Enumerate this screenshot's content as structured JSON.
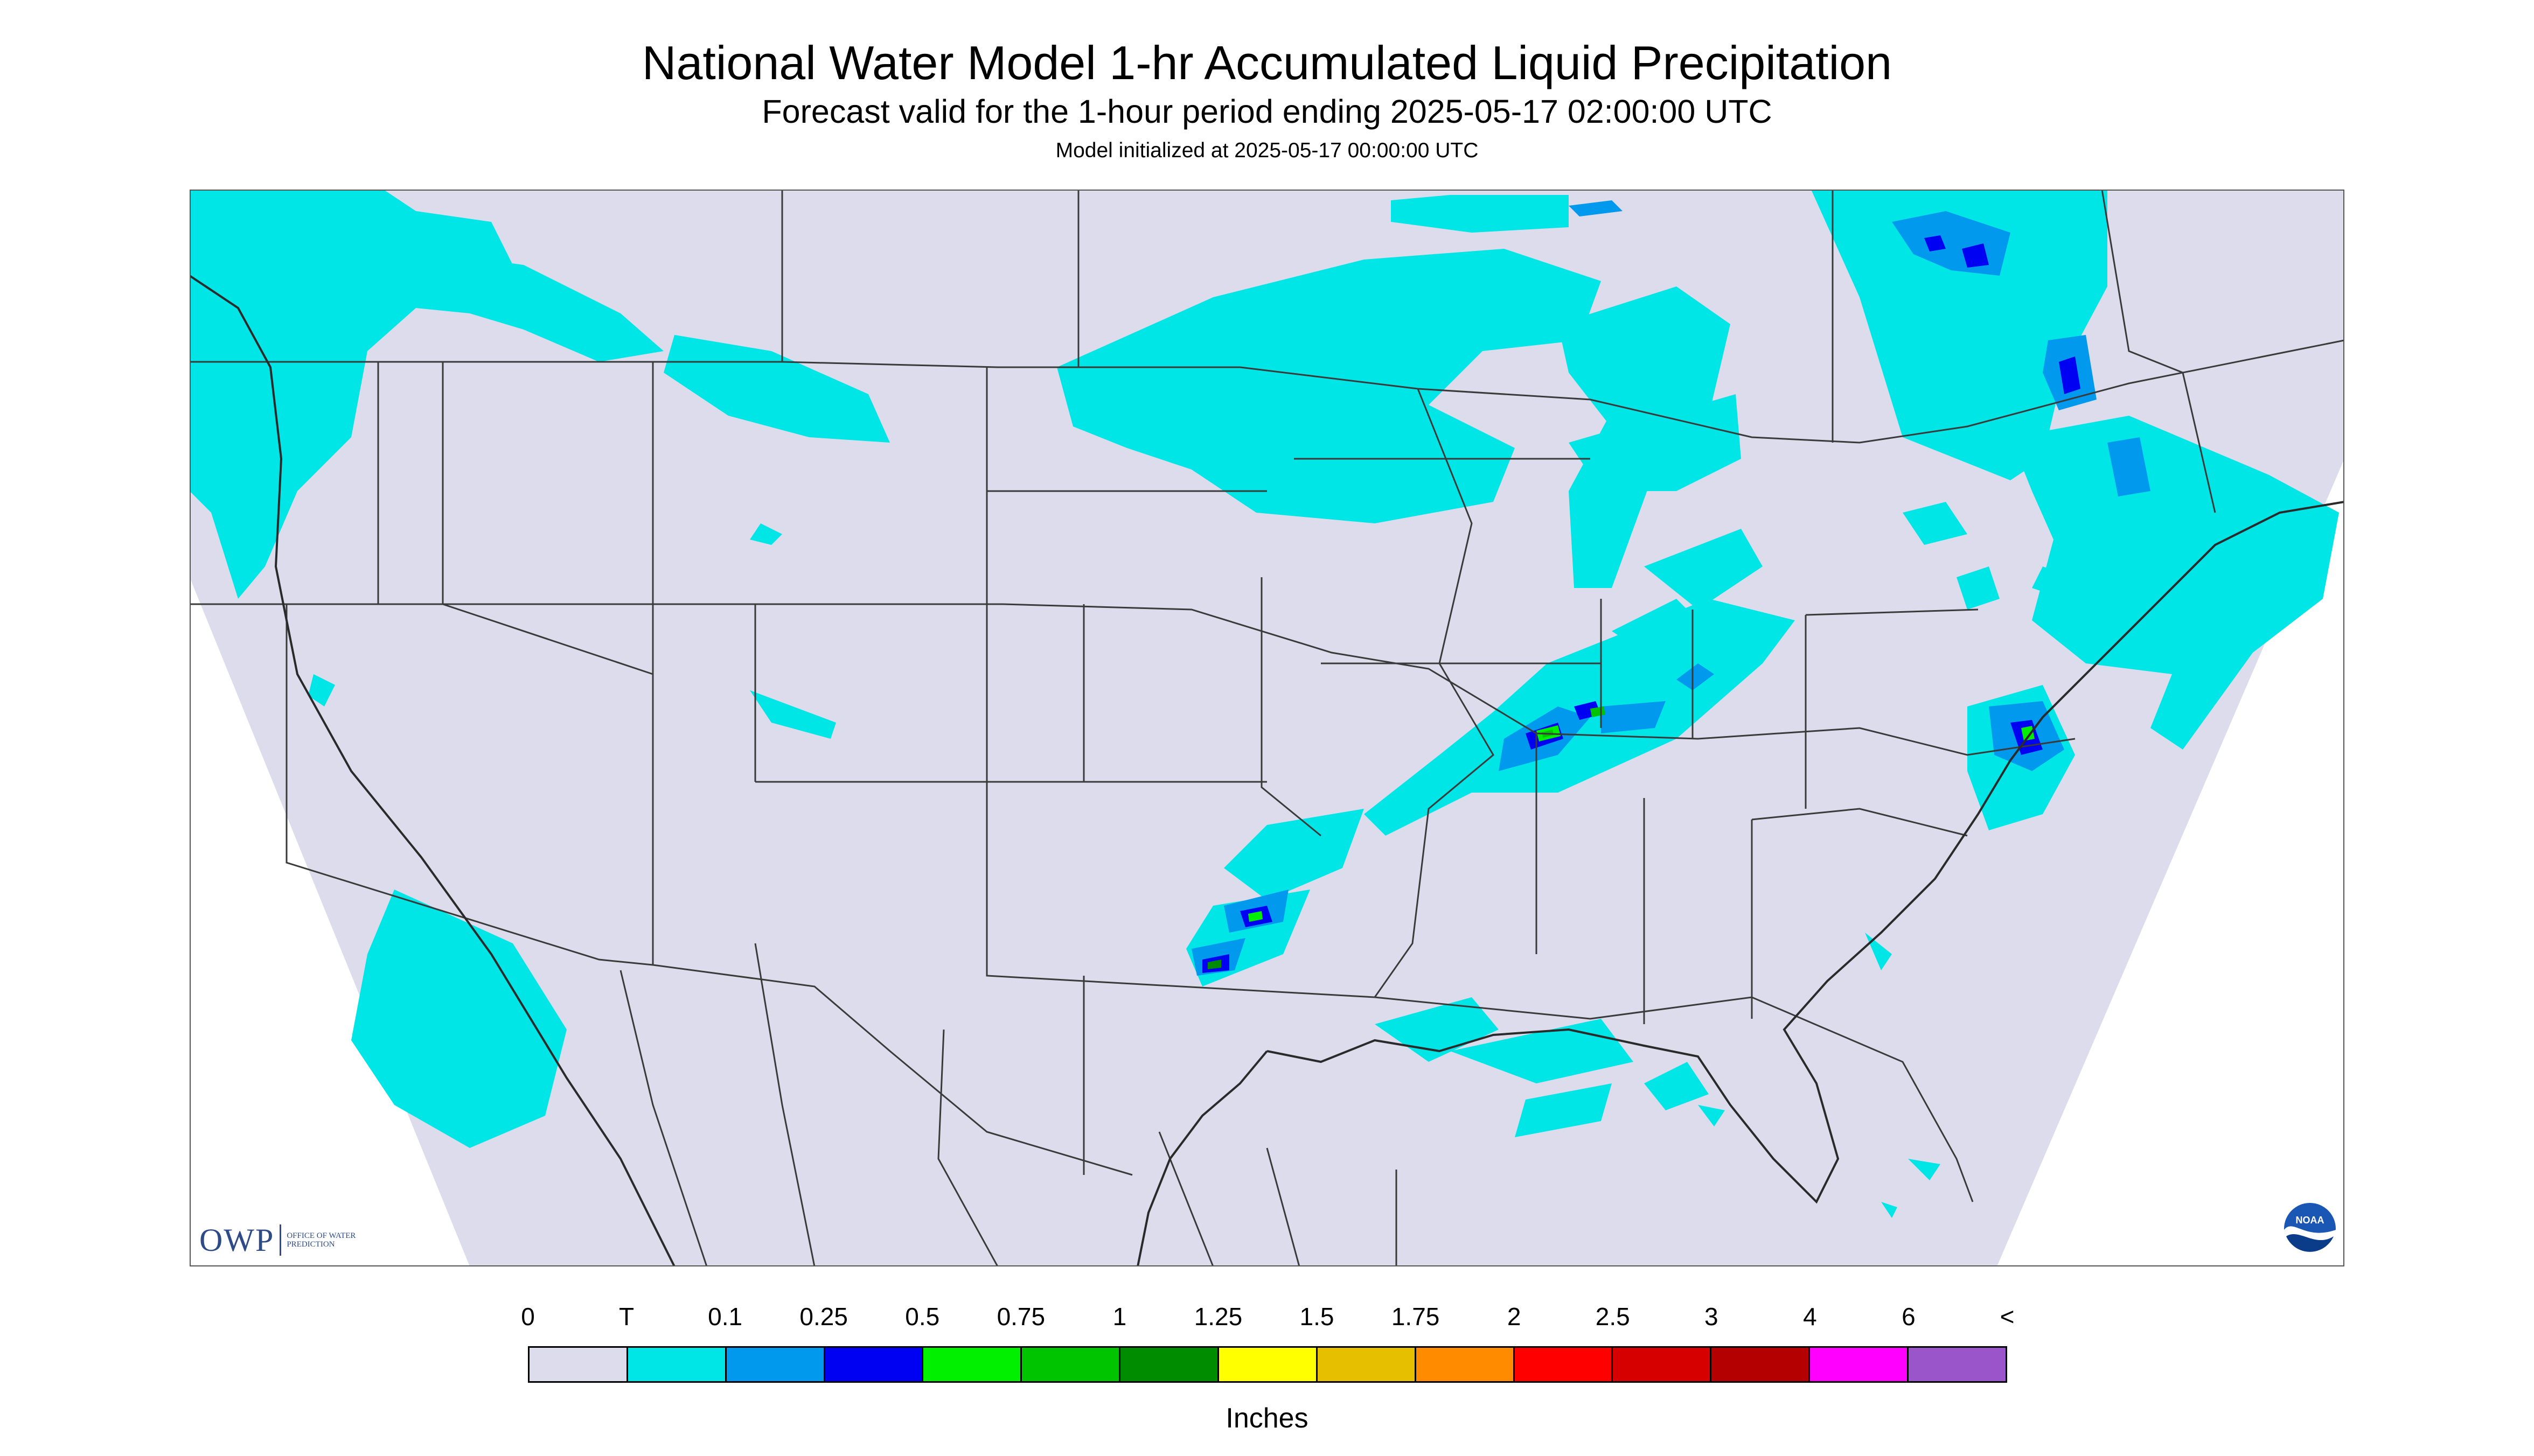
{
  "title": "National Water Model 1-hr Accumulated Liquid Precipitation",
  "subtitle": "Forecast valid for the 1-hour period ending 2025-05-17 02:00:00 UTC",
  "init_line": "Model initialized at 2025-05-17 00:00:00 UTC",
  "logos": {
    "owp_mark": "OWP",
    "owp_text": "Office of Water Prediction",
    "noaa_text": "NOAA"
  },
  "colors": {
    "map_background": "#dcdcec",
    "outside_domain": "#ffffff",
    "boundary_lines": "#3a3a3a"
  },
  "legend": {
    "units": "Inches",
    "labels": [
      "0",
      "T",
      "0.1",
      "0.25",
      "0.5",
      "0.75",
      "1",
      "1.25",
      "1.5",
      "1.75",
      "2",
      "2.5",
      "3",
      "4",
      "6",
      "<"
    ],
    "bins": [
      {
        "color": "#dcdcec"
      },
      {
        "color": "#00e5e6"
      },
      {
        "color": "#0099ee"
      },
      {
        "color": "#0000f2"
      },
      {
        "color": "#00f000"
      },
      {
        "color": "#00c400"
      },
      {
        "color": "#008c00"
      },
      {
        "color": "#ffff00"
      },
      {
        "color": "#e6c000"
      },
      {
        "color": "#ff8c00"
      },
      {
        "color": "#ff0000"
      },
      {
        "color": "#d60000"
      },
      {
        "color": "#b40000"
      },
      {
        "color": "#ff00ff"
      },
      {
        "color": "#9955c9"
      }
    ]
  }
}
